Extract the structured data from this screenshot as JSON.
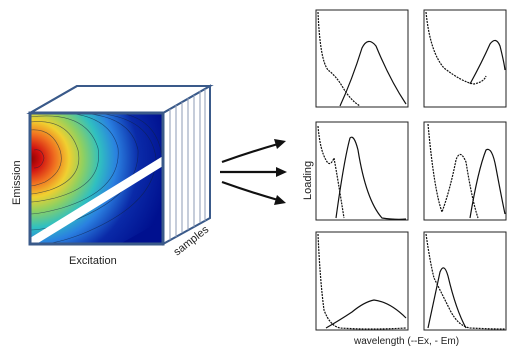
{
  "labels": {
    "emission": "Emission",
    "excitation": "Excitation",
    "samples": "samples",
    "loading": "Loading",
    "wavelength": "wavelength (--Ex, - Em)"
  },
  "colors": {
    "cube_edge": "#3a5a8a",
    "cube_face": "#ffffff",
    "plot_frame": "#222222",
    "curve": "#111111",
    "arrow": "#111111",
    "contour_low": "#00108f",
    "contour_mid": "#2aa0e0",
    "contour_high": "#c81414"
  },
  "loadings": [
    {
      "id": "r1c1",
      "ex": "high-decay",
      "em": "peak-right"
    },
    {
      "id": "r1c2",
      "ex": "high-decay",
      "em": "peak-right-late"
    },
    {
      "id": "r2c1",
      "ex": "two-dips",
      "em": "peak-narrow"
    },
    {
      "id": "r2c2",
      "ex": "two-peaks",
      "em": "peak-center"
    },
    {
      "id": "r3c1",
      "ex": "steep-decay",
      "em": "broad-hump"
    },
    {
      "id": "r3c2",
      "ex": "steep-decay",
      "em": "small-peak"
    }
  ],
  "icons": {
    "arrows": "three-arrows-icon"
  }
}
